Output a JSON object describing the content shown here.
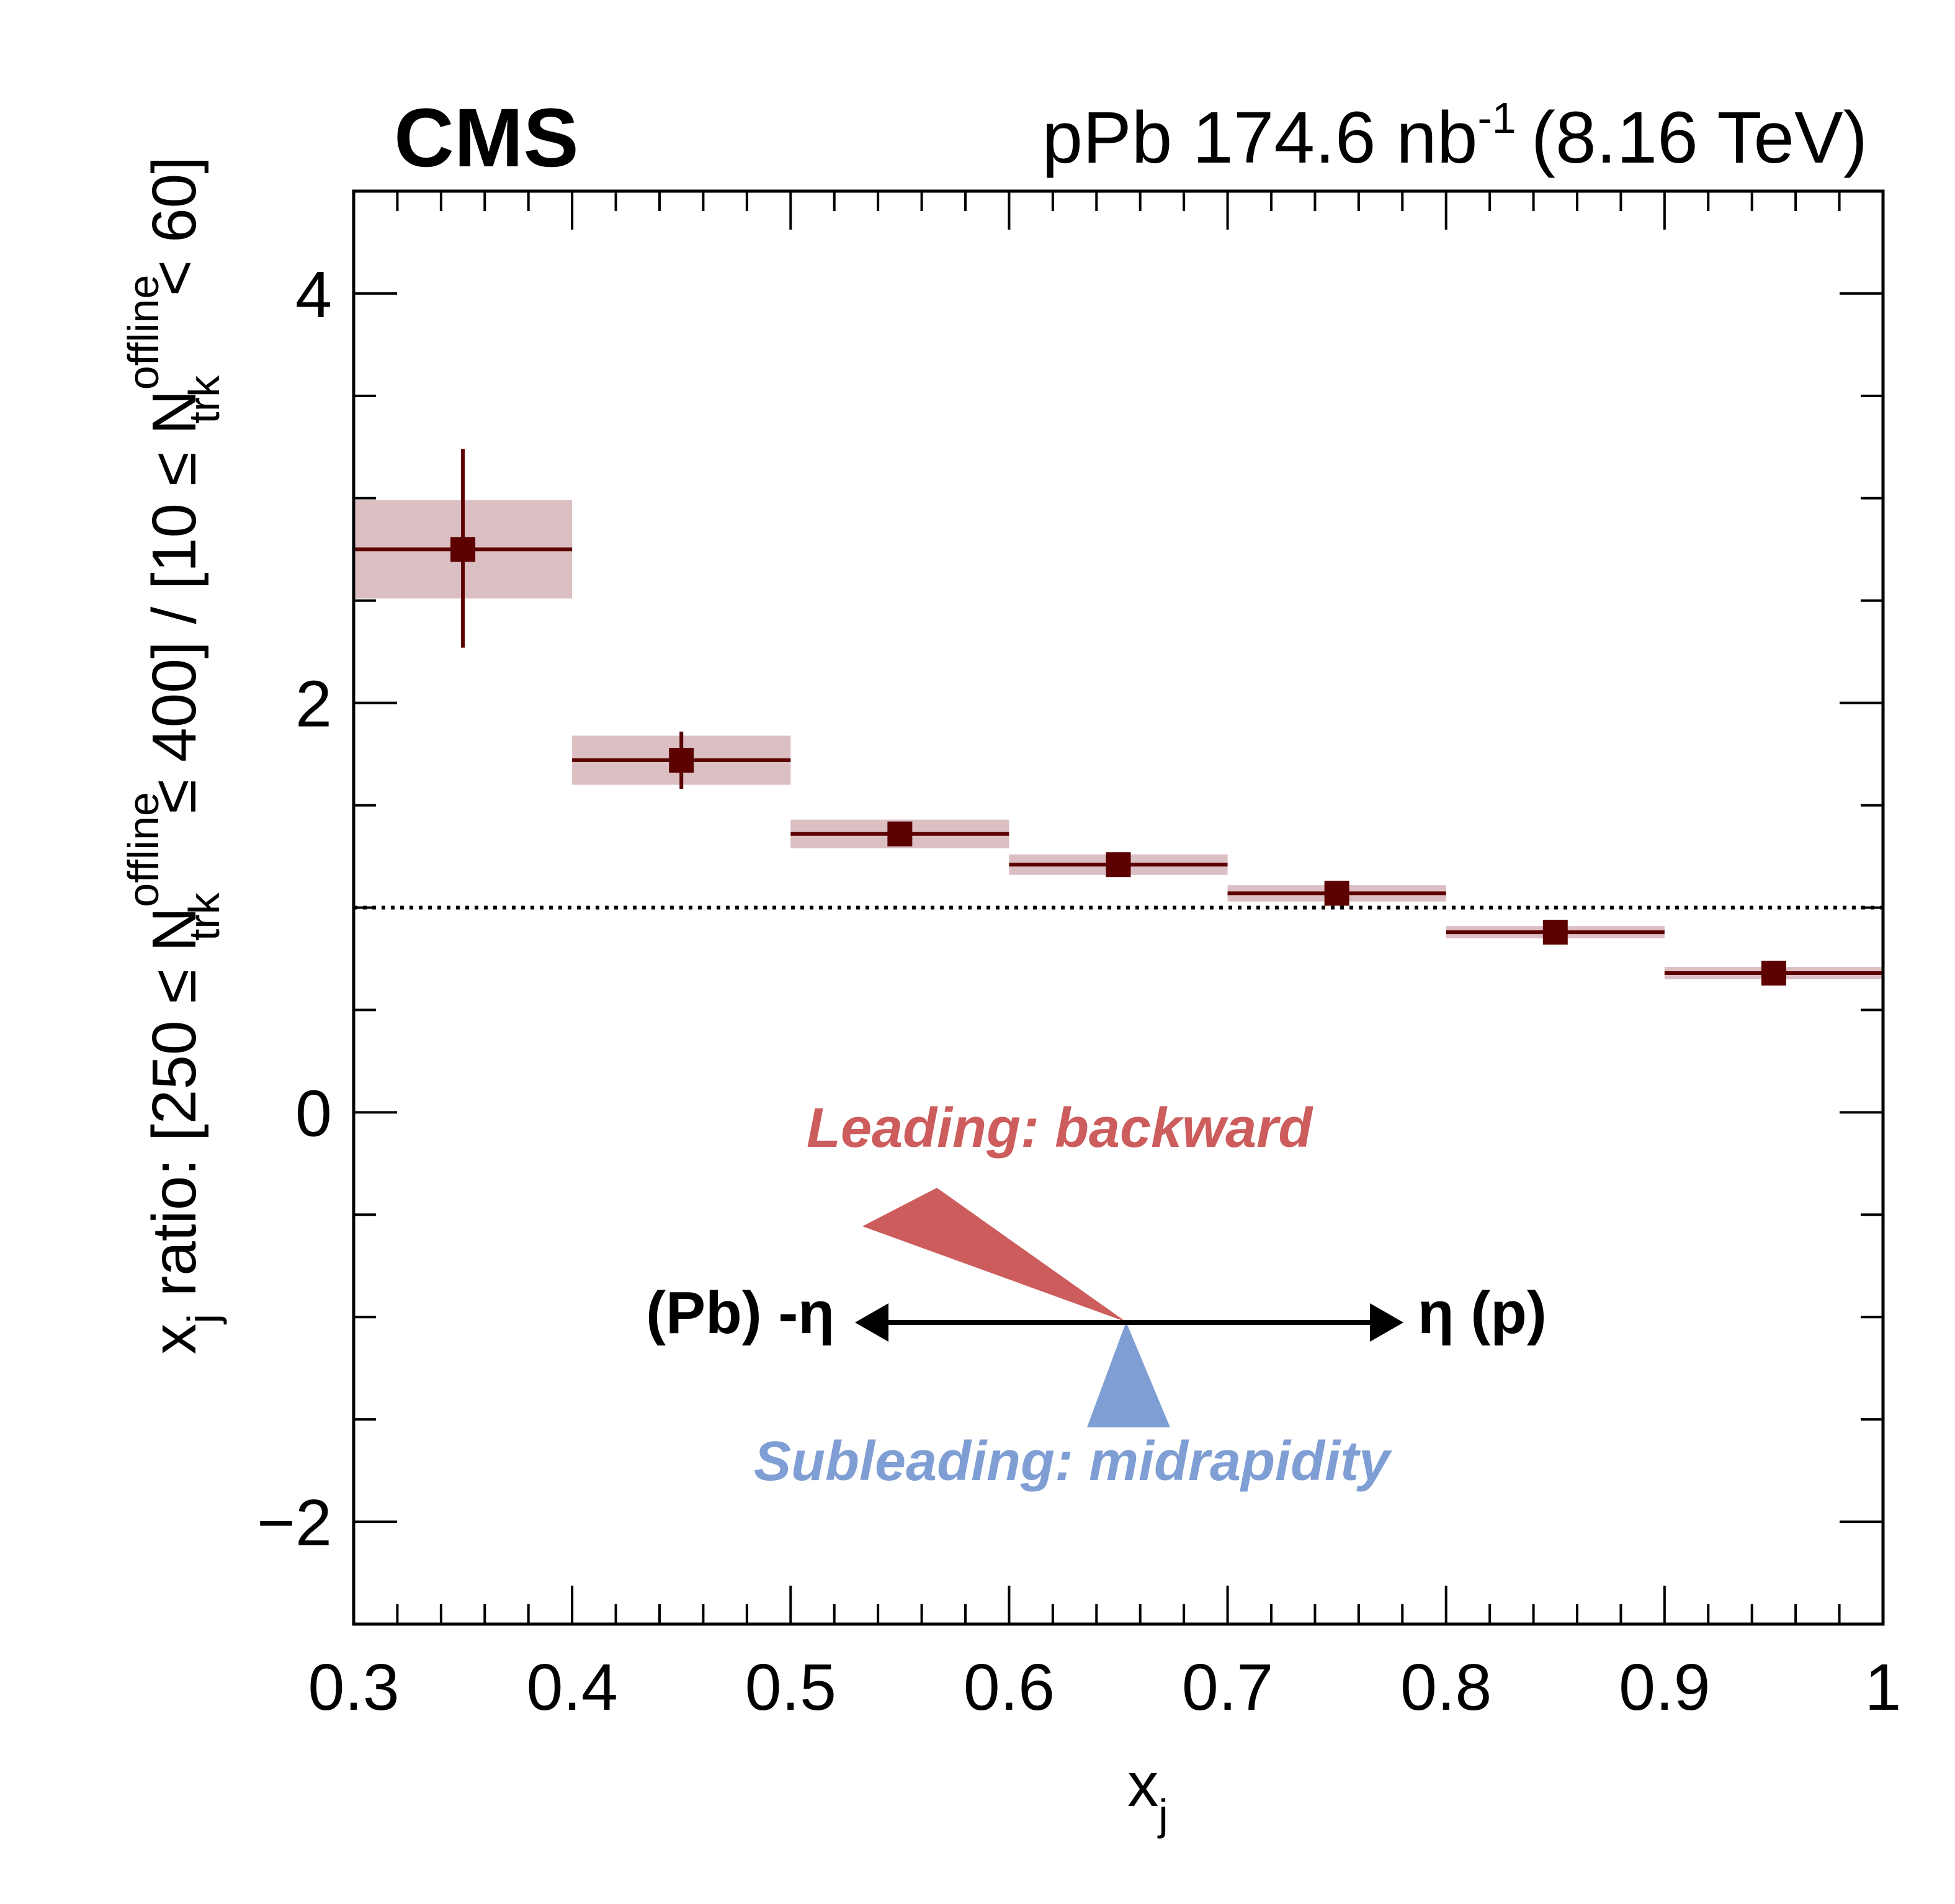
{
  "chart_data": {
    "type": "scatter",
    "header_left": "CMS",
    "header_right": {
      "main": "pPb 174.6 nb",
      "sup": "-1",
      "energy": "(8.16 TeV)"
    },
    "xlabel": {
      "main": "x",
      "sub": "j"
    },
    "ylabel": {
      "p1": "x",
      "p1sub": "j",
      "p2": " ratio: [250 ≤ N",
      "p2sup": "offline",
      "p2sub": "trk",
      "p3": " ≤ 400] / [10 ≤ N",
      "p3sup": "offline",
      "p3sub": "trk",
      "p4": " < 60]"
    },
    "xlim": [
      0.3,
      1.0
    ],
    "ylim": [
      -2.5,
      4.5
    ],
    "x_ticks": [
      0.3,
      0.4,
      0.5,
      0.6,
      0.7,
      0.8,
      0.9,
      1.0
    ],
    "x_tick_labels": [
      "0.3",
      "0.4",
      "0.5",
      "0.6",
      "0.7",
      "0.8",
      "0.9",
      "1"
    ],
    "y_ticks": [
      -2,
      0,
      2,
      4
    ],
    "y_tick_labels": [
      "−2",
      "0",
      "2",
      "4"
    ],
    "reference_line": 1.0,
    "points": [
      {
        "x": 0.35,
        "xlow": 0.3,
        "xhigh": 0.4,
        "y": 2.75,
        "stat_low": 2.27,
        "stat_high": 3.24,
        "syst_low": 2.51,
        "syst_high": 2.99
      },
      {
        "x": 0.45,
        "xlow": 0.4,
        "xhigh": 0.5,
        "y": 1.72,
        "stat_low": 1.58,
        "stat_high": 1.86,
        "syst_low": 1.6,
        "syst_high": 1.84
      },
      {
        "x": 0.55,
        "xlow": 0.5,
        "xhigh": 0.6,
        "y": 1.36,
        "stat_low": 1.32,
        "stat_high": 1.4,
        "syst_low": 1.29,
        "syst_high": 1.43
      },
      {
        "x": 0.65,
        "xlow": 0.6,
        "xhigh": 0.7,
        "y": 1.21,
        "stat_low": 1.18,
        "stat_high": 1.24,
        "syst_low": 1.16,
        "syst_high": 1.26
      },
      {
        "x": 0.75,
        "xlow": 0.7,
        "xhigh": 0.8,
        "y": 1.07,
        "stat_low": 1.05,
        "stat_high": 1.09,
        "syst_low": 1.03,
        "syst_high": 1.11
      },
      {
        "x": 0.85,
        "xlow": 0.8,
        "xhigh": 0.9,
        "y": 0.88,
        "stat_low": 0.87,
        "stat_high": 0.89,
        "syst_low": 0.85,
        "syst_high": 0.91
      },
      {
        "x": 0.95,
        "xlow": 0.9,
        "xhigh": 1.0,
        "y": 0.68,
        "stat_low": 0.67,
        "stat_high": 0.69,
        "syst_low": 0.65,
        "syst_high": 0.71
      }
    ],
    "annotations": {
      "leading": "Leading: backward",
      "subleading": "Subleading: midrapidity",
      "left_label": "(Pb) -η",
      "right_label": "η (p)"
    },
    "colors": {
      "marker": "#5c0000",
      "syst_box": "#dbbfc3",
      "leading": "#cd5c5c",
      "subleading": "#7f9ed4",
      "axis": "#000000"
    },
    "grid": false,
    "legend": "none"
  }
}
